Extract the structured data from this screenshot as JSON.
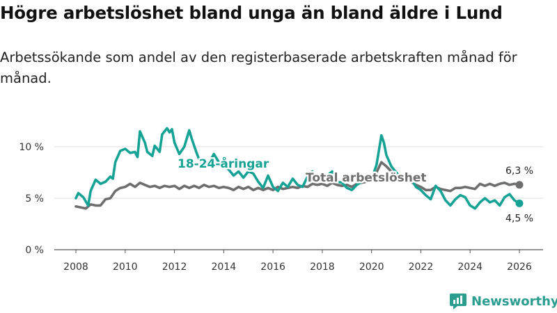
{
  "header": {
    "title": "Högre arbetslöshet bland unga än bland äldre i Lund",
    "subtitle": "Arbetssökande som andel av den registerbaserade arbetskraften månad för månad."
  },
  "brand": {
    "name": "Newsworthy",
    "color": "#2a9d8f"
  },
  "colors": {
    "young": "#16a395",
    "total": "#6e6e6e",
    "grid": "#dddddd",
    "axis": "#555555"
  },
  "chart_data": {
    "type": "line",
    "title": "Högre arbetslöshet bland unga än bland äldre i Lund",
    "xlabel": "",
    "ylabel": "",
    "xlim": [
      2007.6,
      2026.6
    ],
    "ylim": [
      0,
      12
    ],
    "x_ticks": [
      2008,
      2010,
      2012,
      2014,
      2016,
      2018,
      2020,
      2022,
      2024,
      2026
    ],
    "x_tick_labels": [
      "2008",
      "2010",
      "2012",
      "2014",
      "2016",
      "2018",
      "2020",
      "2022",
      "2024",
      "2026"
    ],
    "y_ticks": [
      0,
      5,
      10
    ],
    "y_tick_labels": [
      "0 %",
      "5 %",
      "10 %"
    ],
    "grid": true,
    "series": [
      {
        "name": "18-24-åringar",
        "end_label": "4,5 %",
        "points": [
          [
            2008.0,
            5.0
          ],
          [
            2008.1,
            5.5
          ],
          [
            2008.3,
            5.1
          ],
          [
            2008.5,
            4.3
          ],
          [
            2008.6,
            5.7
          ],
          [
            2008.8,
            6.8
          ],
          [
            2009.0,
            6.4
          ],
          [
            2009.2,
            6.6
          ],
          [
            2009.4,
            7.1
          ],
          [
            2009.5,
            6.9
          ],
          [
            2009.6,
            8.5
          ],
          [
            2009.8,
            9.6
          ],
          [
            2010.0,
            9.8
          ],
          [
            2010.2,
            9.4
          ],
          [
            2010.4,
            9.5
          ],
          [
            2010.5,
            9.0
          ],
          [
            2010.6,
            11.5
          ],
          [
            2010.8,
            10.4
          ],
          [
            2010.9,
            9.5
          ],
          [
            2011.1,
            9.1
          ],
          [
            2011.2,
            10.1
          ],
          [
            2011.4,
            9.5
          ],
          [
            2011.5,
            11.2
          ],
          [
            2011.7,
            11.8
          ],
          [
            2011.8,
            11.4
          ],
          [
            2011.9,
            11.7
          ],
          [
            2012.0,
            10.4
          ],
          [
            2012.2,
            9.3
          ],
          [
            2012.4,
            10.0
          ],
          [
            2012.6,
            11.6
          ],
          [
            2012.7,
            10.8
          ],
          [
            2012.9,
            9.4
          ],
          [
            2013.0,
            8.8
          ],
          [
            2013.2,
            8.0
          ],
          [
            2013.4,
            8.4
          ],
          [
            2013.6,
            9.3
          ],
          [
            2013.8,
            8.5
          ],
          [
            2014.0,
            8.1
          ],
          [
            2014.2,
            7.8
          ],
          [
            2014.4,
            7.2
          ],
          [
            2014.6,
            7.6
          ],
          [
            2014.8,
            7.0
          ],
          [
            2015.0,
            7.6
          ],
          [
            2015.2,
            7.4
          ],
          [
            2015.4,
            6.6
          ],
          [
            2015.6,
            6.0
          ],
          [
            2015.8,
            7.2
          ],
          [
            2016.0,
            6.1
          ],
          [
            2016.2,
            5.7
          ],
          [
            2016.4,
            6.5
          ],
          [
            2016.6,
            6.1
          ],
          [
            2016.8,
            6.9
          ],
          [
            2017.0,
            6.3
          ],
          [
            2017.2,
            6.1
          ],
          [
            2017.4,
            7.1
          ],
          [
            2017.6,
            7.6
          ],
          [
            2017.8,
            6.8
          ],
          [
            2018.0,
            7.0
          ],
          [
            2018.2,
            7.2
          ],
          [
            2018.4,
            7.6
          ],
          [
            2018.6,
            6.6
          ],
          [
            2018.8,
            6.5
          ],
          [
            2019.0,
            6.0
          ],
          [
            2019.2,
            5.8
          ],
          [
            2019.4,
            6.3
          ],
          [
            2019.6,
            6.6
          ],
          [
            2019.8,
            7.0
          ],
          [
            2020.0,
            6.9
          ],
          [
            2020.2,
            8.2
          ],
          [
            2020.4,
            11.1
          ],
          [
            2020.5,
            10.4
          ],
          [
            2020.6,
            9.2
          ],
          [
            2020.8,
            8.1
          ],
          [
            2021.0,
            7.5
          ],
          [
            2021.2,
            7.0
          ],
          [
            2021.4,
            6.7
          ],
          [
            2021.6,
            6.9
          ],
          [
            2021.8,
            6.1
          ],
          [
            2022.0,
            5.8
          ],
          [
            2022.2,
            5.3
          ],
          [
            2022.4,
            4.9
          ],
          [
            2022.6,
            6.2
          ],
          [
            2022.8,
            5.7
          ],
          [
            2023.0,
            4.8
          ],
          [
            2023.2,
            4.3
          ],
          [
            2023.4,
            4.9
          ],
          [
            2023.6,
            5.3
          ],
          [
            2023.8,
            5.1
          ],
          [
            2024.0,
            4.3
          ],
          [
            2024.2,
            4.0
          ],
          [
            2024.4,
            4.6
          ],
          [
            2024.6,
            5.0
          ],
          [
            2024.8,
            4.6
          ],
          [
            2025.0,
            4.8
          ],
          [
            2025.2,
            4.3
          ],
          [
            2025.4,
            5.1
          ],
          [
            2025.6,
            5.4
          ],
          [
            2025.8,
            4.8
          ],
          [
            2026.0,
            4.5
          ]
        ]
      },
      {
        "name": "Total arbetslöshet",
        "end_label": "6,3 %",
        "points": [
          [
            2008.0,
            4.2
          ],
          [
            2008.2,
            4.1
          ],
          [
            2008.4,
            4.0
          ],
          [
            2008.6,
            4.4
          ],
          [
            2008.8,
            4.3
          ],
          [
            2009.0,
            4.3
          ],
          [
            2009.2,
            4.9
          ],
          [
            2009.4,
            5.0
          ],
          [
            2009.6,
            5.7
          ],
          [
            2009.8,
            6.0
          ],
          [
            2010.0,
            6.1
          ],
          [
            2010.2,
            6.4
          ],
          [
            2010.4,
            6.1
          ],
          [
            2010.6,
            6.5
          ],
          [
            2010.8,
            6.3
          ],
          [
            2011.0,
            6.1
          ],
          [
            2011.2,
            6.2
          ],
          [
            2011.4,
            6.0
          ],
          [
            2011.6,
            6.2
          ],
          [
            2011.8,
            6.1
          ],
          [
            2012.0,
            6.2
          ],
          [
            2012.2,
            5.9
          ],
          [
            2012.4,
            6.2
          ],
          [
            2012.6,
            6.0
          ],
          [
            2012.8,
            6.2
          ],
          [
            2013.0,
            6.0
          ],
          [
            2013.2,
            6.3
          ],
          [
            2013.4,
            6.1
          ],
          [
            2013.6,
            6.2
          ],
          [
            2013.8,
            6.0
          ],
          [
            2014.0,
            6.1
          ],
          [
            2014.2,
            6.0
          ],
          [
            2014.4,
            5.8
          ],
          [
            2014.6,
            6.1
          ],
          [
            2014.8,
            5.9
          ],
          [
            2015.0,
            6.1
          ],
          [
            2015.2,
            5.8
          ],
          [
            2015.4,
            6.0
          ],
          [
            2015.6,
            5.8
          ],
          [
            2015.8,
            6.0
          ],
          [
            2016.0,
            5.8
          ],
          [
            2016.2,
            6.1
          ],
          [
            2016.4,
            5.9
          ],
          [
            2016.6,
            6.0
          ],
          [
            2016.8,
            6.1
          ],
          [
            2017.0,
            6.0
          ],
          [
            2017.2,
            6.2
          ],
          [
            2017.4,
            6.1
          ],
          [
            2017.6,
            6.4
          ],
          [
            2017.8,
            6.3
          ],
          [
            2018.0,
            6.4
          ],
          [
            2018.2,
            6.2
          ],
          [
            2018.4,
            6.5
          ],
          [
            2018.6,
            6.3
          ],
          [
            2018.8,
            6.2
          ],
          [
            2019.0,
            6.3
          ],
          [
            2019.2,
            6.1
          ],
          [
            2019.4,
            6.4
          ],
          [
            2019.6,
            6.5
          ],
          [
            2019.8,
            6.6
          ],
          [
            2020.0,
            6.7
          ],
          [
            2020.2,
            7.5
          ],
          [
            2020.4,
            8.5
          ],
          [
            2020.6,
            8.1
          ],
          [
            2020.8,
            7.6
          ],
          [
            2021.0,
            7.2
          ],
          [
            2021.2,
            6.9
          ],
          [
            2021.4,
            6.7
          ],
          [
            2021.6,
            6.6
          ],
          [
            2021.8,
            6.3
          ],
          [
            2022.0,
            6.1
          ],
          [
            2022.2,
            5.8
          ],
          [
            2022.4,
            5.8
          ],
          [
            2022.6,
            6.1
          ],
          [
            2022.8,
            5.9
          ],
          [
            2023.0,
            5.8
          ],
          [
            2023.2,
            5.7
          ],
          [
            2023.4,
            6.0
          ],
          [
            2023.6,
            6.0
          ],
          [
            2023.8,
            6.1
          ],
          [
            2024.0,
            6.0
          ],
          [
            2024.2,
            5.9
          ],
          [
            2024.4,
            6.4
          ],
          [
            2024.6,
            6.2
          ],
          [
            2024.8,
            6.4
          ],
          [
            2025.0,
            6.2
          ],
          [
            2025.2,
            6.4
          ],
          [
            2025.4,
            6.5
          ],
          [
            2025.6,
            6.3
          ],
          [
            2025.8,
            6.4
          ],
          [
            2026.0,
            6.3
          ]
        ]
      }
    ]
  }
}
